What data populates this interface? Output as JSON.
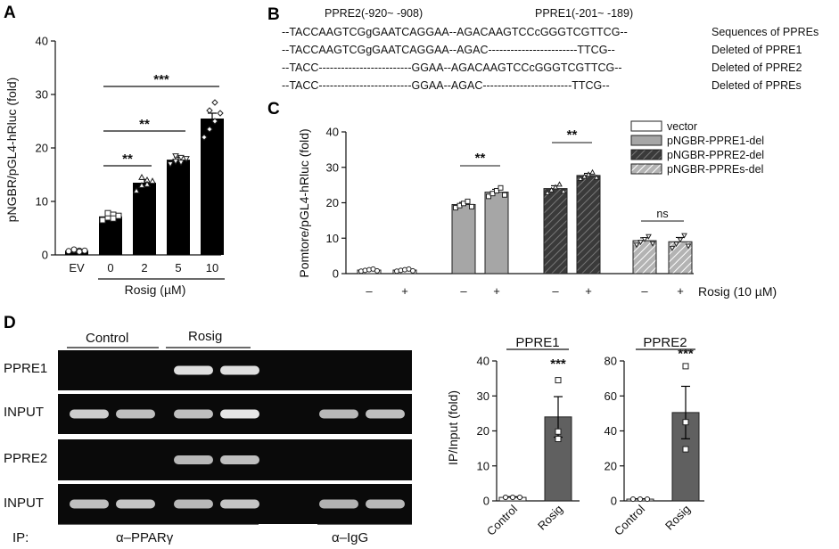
{
  "panel_labels": {
    "A": "A",
    "B": "B",
    "C": "C",
    "D": "D"
  },
  "panel_b": {
    "header_left": "PPRE2(-920~ -908)",
    "header_right": "PPRE1(-201~ -189)",
    "rows": [
      {
        "seq": "--TACCAAGTCGgGAATCAGGAA--AGACAAGTCCcGGGTCGTTCG--",
        "label": "Sequences of PPREs"
      },
      {
        "seq": "--TACCAAGTCGgGAATCAGGAA--AGAC------------------------TTCG--",
        "label": "Deleted of PPRE1"
      },
      {
        "seq": "--TACC-------------------------GGAA--AGACAAGTCCcGGGTCGTTCG--",
        "label": "Deleted of PPRE2"
      },
      {
        "seq": "--TACC-------------------------GGAA--AGAC------------------------TTCG--",
        "label": "Deleted of PPREs"
      }
    ]
  },
  "chart_data": [
    {
      "id": "A",
      "type": "bar",
      "ylabel": "pNGBR/pGL4-hRluc (fold)",
      "xlabel": "Rosig (µM)",
      "categories": [
        "EV",
        "0",
        "2",
        "5",
        "10"
      ],
      "values": [
        0.8,
        7.2,
        13.5,
        17.8,
        25.5
      ],
      "errors": [
        0.2,
        0.5,
        0.6,
        0.5,
        1.0
      ],
      "points": [
        [
          0.7,
          0.9,
          0.8,
          1.0,
          0.6,
          0.8
        ],
        [
          6.5,
          7.0,
          7.5,
          7.8,
          6.8,
          7.3
        ],
        [
          12.0,
          13.0,
          14.0,
          14.5,
          13.2,
          13.8
        ],
        [
          17.0,
          17.5,
          18.2,
          18.5,
          17.3,
          18.0
        ],
        [
          22.0,
          23.5,
          25.0,
          27.0,
          28.5,
          26.5
        ]
      ],
      "ylim": [
        0,
        40
      ],
      "yticks": [
        0,
        10,
        20,
        30,
        40
      ],
      "significance": [
        {
          "from": "0",
          "to": "2",
          "label": "**"
        },
        {
          "from": "0",
          "to": "5",
          "label": "**"
        },
        {
          "from": "0",
          "to": "10",
          "label": "***"
        }
      ]
    },
    {
      "id": "C",
      "type": "bar",
      "ylabel": "Pomtore/pGL4-hRluc (fold)",
      "xlabel": "Rosig (10 µM)",
      "categories": [
        "–",
        "+",
        "–",
        "+",
        "–",
        "+",
        "–",
        "+"
      ],
      "groups": [
        {
          "name": "vector",
          "color": "#ffffff",
          "pattern": "none",
          "values": [
            1.0,
            1.0
          ],
          "errors": [
            0.2,
            0.2
          ]
        },
        {
          "name": "pNGBR-PPRE1-del",
          "color": "#a6a6a6",
          "pattern": "none",
          "values": [
            19.5,
            23.0
          ],
          "errors": [
            0.6,
            0.8
          ]
        },
        {
          "name": "pNGBR-PPRE2-del",
          "color": "#3a3a3a",
          "pattern": "dense-hatch",
          "values": [
            24.0,
            27.7
          ],
          "errors": [
            0.8,
            0.6
          ]
        },
        {
          "name": " pNGBR-PPREs-del",
          "color": "#b3b3b3",
          "pattern": "light-hatch",
          "values": [
            9.3,
            9.0
          ],
          "errors": [
            0.8,
            1.2
          ]
        }
      ],
      "ylim": [
        0,
        40
      ],
      "yticks": [
        0,
        10,
        20,
        30,
        40
      ],
      "significance": [
        {
          "group": 1,
          "label": "**"
        },
        {
          "group": 2,
          "label": "**"
        },
        {
          "group": 3,
          "label": "ns"
        }
      ]
    },
    {
      "id": "D-PPRE1",
      "type": "bar",
      "title": "PPRE1",
      "ylabel": "IP/Input (fold)",
      "categories": [
        "Control",
        "Rosig"
      ],
      "values": [
        1.0,
        24.0
      ],
      "errors": [
        0.2,
        5.8
      ],
      "points": [
        [
          1.0,
          1.0,
          1.0
        ],
        [
          34.5,
          19.8,
          17.7
        ]
      ],
      "ylim": [
        0,
        40
      ],
      "yticks": [
        0,
        10,
        20,
        30,
        40
      ],
      "significance": [
        {
          "on": "Rosig",
          "label": "***"
        }
      ]
    },
    {
      "id": "D-PPRE2",
      "type": "bar",
      "title": "PPRE2",
      "categories": [
        "Control",
        "Rosig"
      ],
      "values": [
        1.0,
        50.5
      ],
      "errors": [
        0.2,
        15.0
      ],
      "points": [
        [
          1.0,
          1.0,
          1.0
        ],
        [
          77.0,
          45.0,
          29.5
        ]
      ],
      "ylim": [
        0,
        80
      ],
      "yticks": [
        0,
        20,
        40,
        60,
        80
      ],
      "significance": [
        {
          "on": "Rosig",
          "label": "***"
        }
      ]
    }
  ],
  "gel": {
    "group_labels": [
      "Control",
      "Rosig"
    ],
    "row_labels": [
      "PPRE1",
      "INPUT",
      "PPRE2",
      "INPUT"
    ],
    "ip_label": "IP:",
    "antibodies": [
      "α–PPARγ",
      "α–IgG"
    ],
    "band_intensity": [
      [
        0.05,
        0.05,
        0.85,
        0.85,
        0.05,
        0.05,
        0.05
      ],
      [
        0.7,
        0.6,
        0.6,
        0.9,
        0.05,
        0.55,
        0.6
      ],
      [
        0.05,
        0.05,
        0.55,
        0.6,
        0.05,
        0.05,
        0.05
      ],
      [
        0.6,
        0.65,
        0.55,
        0.65,
        0.05,
        0.5,
        0.55
      ]
    ]
  }
}
